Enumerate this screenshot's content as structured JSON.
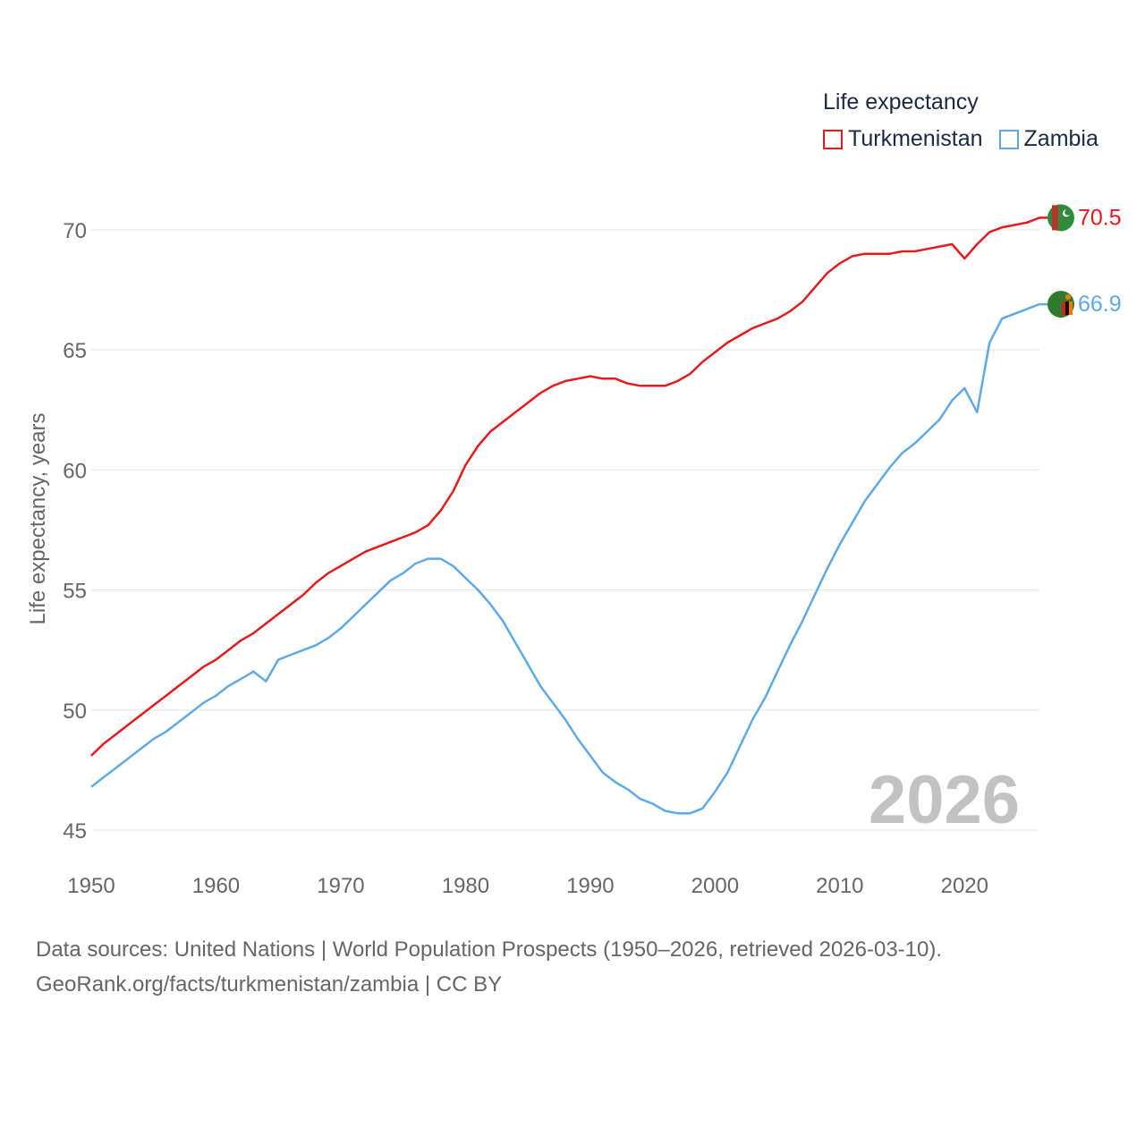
{
  "legend": {
    "title": "Life expectancy",
    "series": [
      {
        "name": "Turkmenistan",
        "color": "#e41a1c"
      },
      {
        "name": "Zambia",
        "color": "#5ea9e6"
      }
    ]
  },
  "year_label": "2026",
  "source": {
    "line1": "Data sources: United Nations | World Population Prospects (1950–2026, retrieved 2026-03-10).",
    "line2": "GeoRank.org/facts/turkmenistan/zambia | CC BY"
  },
  "chart_data": {
    "type": "line",
    "title": "Life expectancy",
    "xlabel": "",
    "ylabel": "Life expectancy, years",
    "xlim": [
      1950,
      2026
    ],
    "ylim": [
      45,
      71
    ],
    "x_ticks": [
      1950,
      1960,
      1970,
      1980,
      1990,
      2000,
      2010,
      2020
    ],
    "y_ticks": [
      45,
      50,
      55,
      60,
      65,
      70
    ],
    "grid": true,
    "x": [
      1950,
      1951,
      1952,
      1953,
      1954,
      1955,
      1956,
      1957,
      1958,
      1959,
      1960,
      1961,
      1962,
      1963,
      1964,
      1965,
      1966,
      1967,
      1968,
      1969,
      1970,
      1971,
      1972,
      1973,
      1974,
      1975,
      1976,
      1977,
      1978,
      1979,
      1980,
      1981,
      1982,
      1983,
      1984,
      1985,
      1986,
      1987,
      1988,
      1989,
      1990,
      1991,
      1992,
      1993,
      1994,
      1995,
      1996,
      1997,
      1998,
      1999,
      2000,
      2001,
      2002,
      2003,
      2004,
      2005,
      2006,
      2007,
      2008,
      2009,
      2010,
      2011,
      2012,
      2013,
      2014,
      2015,
      2016,
      2017,
      2018,
      2019,
      2020,
      2021,
      2022,
      2023,
      2024,
      2025,
      2026
    ],
    "series": [
      {
        "name": "Turkmenistan",
        "color": "#e41a1c",
        "end_label": "70.5",
        "values": [
          48.1,
          48.6,
          49.0,
          49.4,
          49.8,
          50.2,
          50.6,
          51.0,
          51.4,
          51.8,
          52.1,
          52.5,
          52.9,
          53.2,
          53.6,
          54.0,
          54.4,
          54.8,
          55.3,
          55.7,
          56.0,
          56.3,
          56.6,
          56.8,
          57.0,
          57.2,
          57.4,
          57.7,
          58.3,
          59.1,
          60.2,
          61.0,
          61.6,
          62.0,
          62.4,
          62.8,
          63.2,
          63.5,
          63.7,
          63.8,
          63.9,
          63.8,
          63.8,
          63.6,
          63.5,
          63.5,
          63.5,
          63.7,
          64.0,
          64.5,
          64.9,
          65.3,
          65.6,
          65.9,
          66.1,
          66.3,
          66.6,
          67.0,
          67.6,
          68.2,
          68.6,
          68.9,
          69.0,
          69.0,
          69.0,
          69.1,
          69.1,
          69.2,
          69.3,
          69.4,
          68.8,
          69.4,
          69.9,
          70.1,
          70.2,
          70.3,
          70.5
        ]
      },
      {
        "name": "Zambia",
        "color": "#5ea9e6",
        "end_label": "66.9",
        "values": [
          46.8,
          47.2,
          47.6,
          48.0,
          48.4,
          48.8,
          49.1,
          49.5,
          49.9,
          50.3,
          50.6,
          51.0,
          51.3,
          51.6,
          51.2,
          52.1,
          52.3,
          52.5,
          52.7,
          53.0,
          53.4,
          53.9,
          54.4,
          54.9,
          55.4,
          55.7,
          56.1,
          56.3,
          56.3,
          56.0,
          55.5,
          55.0,
          54.4,
          53.7,
          52.8,
          51.9,
          51.0,
          50.3,
          49.6,
          48.8,
          48.1,
          47.4,
          47.0,
          46.7,
          46.3,
          46.1,
          45.8,
          45.7,
          45.7,
          45.9,
          46.6,
          47.4,
          48.5,
          49.6,
          50.5,
          51.6,
          52.7,
          53.7,
          54.8,
          55.9,
          56.9,
          57.8,
          58.7,
          59.4,
          60.1,
          60.7,
          61.1,
          61.6,
          62.1,
          62.9,
          63.4,
          62.4,
          65.3,
          66.3,
          66.5,
          66.7,
          66.9
        ]
      }
    ]
  }
}
